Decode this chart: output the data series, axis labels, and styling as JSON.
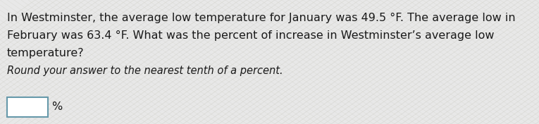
{
  "line1": "In Westminster, the average low temperature for January was 49.5 °F. The average low in",
  "line2": "February was 63.4 °F. What was the percent of increase in Westminster’s average low",
  "line3": "temperature?",
  "line4": "Round your answer to the nearest tenth of a percent.",
  "line5": "%",
  "bg_color": "#e8e8e8",
  "pattern_color": "#d0d0c8",
  "text_color": "#1a1a1a",
  "main_fontsize": 11.5,
  "sub_fontsize": 10.5,
  "box_border_color": "#6699aa",
  "box_face_color": "#ffffff"
}
